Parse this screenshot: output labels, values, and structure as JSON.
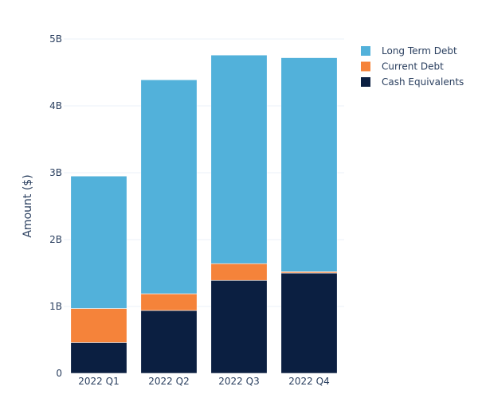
{
  "chart_data": {
    "type": "bar",
    "stacked": true,
    "title": "",
    "xlabel": "",
    "ylabel": "Amount ($)",
    "ylim": [
      0,
      5000000000
    ],
    "y_ticks": [
      {
        "value": 0,
        "label": "0"
      },
      {
        "value": 1000000000,
        "label": "1B"
      },
      {
        "value": 2000000000,
        "label": "2B"
      },
      {
        "value": 3000000000,
        "label": "3B"
      },
      {
        "value": 4000000000,
        "label": "4B"
      },
      {
        "value": 5000000000,
        "label": "5B"
      }
    ],
    "grid": true,
    "legend_position": "top-right",
    "categories": [
      "2022 Q1",
      "2022 Q2",
      "2022 Q3",
      "2022 Q4"
    ],
    "series": [
      {
        "name": "Cash Equivalents",
        "color": "#0b1f41",
        "values": [
          460000000,
          940000000,
          1390000000,
          1500000000
        ]
      },
      {
        "name": "Current Debt",
        "color": "#f5833a",
        "values": [
          510000000,
          250000000,
          250000000,
          20000000
        ]
      },
      {
        "name": "Long Term Debt",
        "color": "#52b1da",
        "values": [
          1980000000,
          3200000000,
          3120000000,
          3200000000
        ]
      }
    ],
    "legend_order": [
      "Long Term Debt",
      "Current Debt",
      "Cash Equivalents"
    ]
  }
}
